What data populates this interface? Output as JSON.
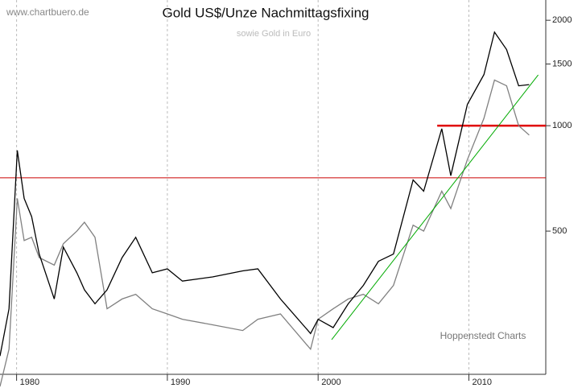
{
  "chart_data": {
    "type": "line",
    "title": "Gold US$/Unze Nachmittagsfixing",
    "subtitle": "sowie Gold in Euro",
    "watermark": "www.chartbuero.de",
    "source": "Hoppenstedt Charts",
    "x": [
      1978.9,
      1979.5,
      1980.05,
      1980.5,
      1981,
      1981.5,
      1982.5,
      1983.1,
      1984,
      1984.5,
      1985.2,
      1986,
      1987,
      1987.9,
      1989,
      1990,
      1991,
      1993,
      1995,
      1996,
      1997.5,
      1999.5,
      2000,
      2001,
      2002,
      2003,
      2004,
      2005,
      2006.3,
      2007,
      2008.2,
      2008.8,
      2009.9,
      2011,
      2011.7,
      2012.5,
      2013.3,
      2014
    ],
    "series": [
      {
        "color": "#808080",
        "values": [
          180,
          230,
          620,
          470,
          480,
          420,
          400,
          460,
          500,
          530,
          480,
          300,
          320,
          330,
          300,
          290,
          280,
          270,
          260,
          280,
          290,
          230,
          280,
          300,
          320,
          330,
          310,
          350,
          520,
          500,
          650,
          580,
          800,
          1050,
          1350,
          1300,
          1000,
          940
        ]
      },
      {
        "color": "#000000",
        "values": [
          220,
          300,
          850,
          620,
          550,
          430,
          320,
          450,
          380,
          340,
          310,
          340,
          420,
          480,
          380,
          390,
          360,
          370,
          385,
          390,
          320,
          255,
          280,
          265,
          310,
          350,
          410,
          430,
          700,
          650,
          980,
          720,
          1150,
          1400,
          1850,
          1650,
          1300,
          1310
        ]
      }
    ],
    "xlim": [
      1978.9,
      2015.1
    ],
    "ylim": [
      195,
      2285
    ],
    "log_y": true,
    "xticks": [
      1980,
      1990,
      2000,
      2010
    ],
    "yticks": [
      500,
      1000,
      1500,
      2000
    ],
    "grid": true,
    "reference_lines": [
      {
        "value": 710,
        "color": "#cc0000",
        "width": 1
      },
      {
        "value": 1000,
        "color": "#e00000",
        "width": 2.5,
        "x_start": 2007.9
      }
    ],
    "trend_line": {
      "x": [
        2000.9,
        2014.6
      ],
      "values": [
        245,
        1396
      ],
      "color": "#00aa00"
    }
  }
}
